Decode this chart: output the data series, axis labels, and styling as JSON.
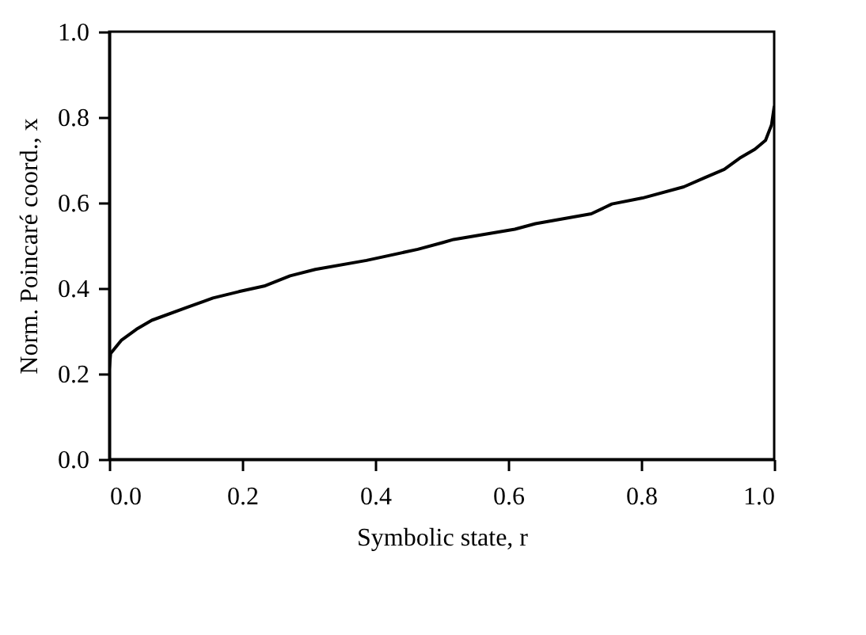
{
  "chart_data": {
    "type": "line",
    "xlabel": "Symbolic state, r",
    "ylabel": "Norm. Poincaré coord., x",
    "x": [
      0,
      0.002,
      0.018,
      0.041,
      0.064,
      0.118,
      0.156,
      0.195,
      0.233,
      0.272,
      0.31,
      0.387,
      0.464,
      0.502,
      0.518,
      0.61,
      0.641,
      0.725,
      0.756,
      0.802,
      0.864,
      0.895,
      0.925,
      0.948,
      0.971,
      0.987,
      0.996,
      1.0
    ],
    "series": [
      {
        "color": "#000000",
        "values": [
          0.21,
          0.247,
          0.278,
          0.304,
          0.325,
          0.356,
          0.377,
          0.392,
          0.405,
          0.429,
          0.444,
          0.465,
          0.491,
          0.507,
          0.514,
          0.538,
          0.551,
          0.574,
          0.597,
          0.611,
          0.637,
          0.658,
          0.678,
          0.704,
          0.725,
          0.746,
          0.782,
          0.824
        ]
      }
    ],
    "xlim": [
      0,
      1
    ],
    "ylim": [
      0,
      1
    ],
    "xticks": [
      {
        "value": 0,
        "label": "0.0"
      },
      0.2,
      0.4,
      0.6,
      0.8,
      {
        "value": 1,
        "label": "1.0"
      }
    ],
    "yticks": [
      {
        "value": 0,
        "label": "0.0"
      },
      0.2,
      0.4,
      0.6,
      0.8,
      {
        "value": 1,
        "label": "1.0"
      }
    ],
    "grid": false,
    "marker": "none",
    "line_style": "solid"
  }
}
